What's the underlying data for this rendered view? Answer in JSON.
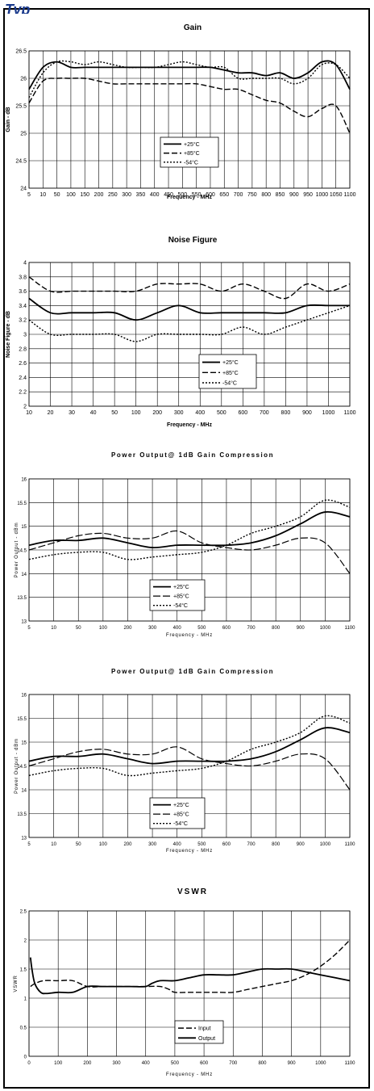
{
  "chart_data": [
    {
      "type": "line",
      "title": "Gain",
      "xlabel": "Frequency - MHz",
      "ylabel": "Gain - dB",
      "ylim": [
        24,
        26.5
      ],
      "y_ticks": [
        "24",
        "24.5",
        "25",
        "25.5",
        "26",
        "26.5"
      ],
      "x_ticks": [
        "5",
        "10",
        "50",
        "100",
        "150",
        "200",
        "250",
        "300",
        "350",
        "400",
        "450",
        "500",
        "550",
        "600",
        "650",
        "700",
        "750",
        "800",
        "850",
        "900",
        "950",
        "1000",
        "1050",
        "1100"
      ],
      "grid": true,
      "legend_position": "center-bottom",
      "series": [
        {
          "name": "+25°C",
          "style": "solid",
          "values": [
            25.8,
            26.2,
            26.3,
            26.2,
            26.2,
            26.2,
            26.2,
            26.2,
            26.2,
            26.2,
            26.2,
            26.2,
            26.2,
            26.2,
            26.15,
            26.1,
            26.1,
            26.05,
            26.1,
            26.0,
            26.1,
            26.3,
            26.25,
            25.8
          ]
        },
        {
          "name": "+85°C",
          "style": "dashed",
          "values": [
            25.55,
            25.95,
            26.0,
            26.0,
            26.0,
            25.95,
            25.9,
            25.9,
            25.9,
            25.9,
            25.9,
            25.9,
            25.9,
            25.85,
            25.8,
            25.8,
            25.7,
            25.6,
            25.55,
            25.4,
            25.3,
            25.45,
            25.5,
            25.0
          ]
        },
        {
          "name": "-54°C",
          "style": "dotted",
          "values": [
            25.65,
            26.1,
            26.3,
            26.3,
            26.25,
            26.3,
            26.25,
            26.2,
            26.2,
            26.2,
            26.25,
            26.3,
            26.25,
            26.2,
            26.2,
            26.0,
            26.0,
            26.0,
            26.0,
            25.9,
            26.0,
            26.25,
            26.25,
            26.0
          ]
        }
      ]
    },
    {
      "type": "line",
      "title": "Noise Figure",
      "xlabel": "Frequency - MHz",
      "ylabel": "Noise Figure - dB",
      "ylim": [
        2,
        4
      ],
      "y_ticks": [
        "2",
        "2.2",
        "2.4",
        "2.6",
        "2.8",
        "3",
        "3.2",
        "3.4",
        "3.6",
        "3.8",
        "4"
      ],
      "x_ticks": [
        "10",
        "20",
        "30",
        "40",
        "50",
        "100",
        "200",
        "300",
        "400",
        "500",
        "600",
        "700",
        "800",
        "900",
        "1000",
        "1100"
      ],
      "grid": true,
      "legend_position": "center-bottom",
      "series": [
        {
          "name": "+25°C",
          "style": "solid",
          "values": [
            3.5,
            3.3,
            3.3,
            3.3,
            3.3,
            3.2,
            3.3,
            3.4,
            3.3,
            3.3,
            3.3,
            3.3,
            3.3,
            3.4,
            3.4,
            3.4
          ]
        },
        {
          "name": "+85°C",
          "style": "dashed",
          "values": [
            3.8,
            3.6,
            3.6,
            3.6,
            3.6,
            3.6,
            3.7,
            3.7,
            3.7,
            3.6,
            3.7,
            3.6,
            3.5,
            3.7,
            3.6,
            3.7
          ]
        },
        {
          "name": "-54°C",
          "style": "dotted",
          "values": [
            3.2,
            3.0,
            3.0,
            3.0,
            3.0,
            2.9,
            3.0,
            3.0,
            3.0,
            3.0,
            3.1,
            3.0,
            3.1,
            3.2,
            3.3,
            3.4
          ]
        }
      ]
    },
    {
      "type": "line",
      "title": "Power Output@ 1dB Gain Compression",
      "xlabel": "Frequency - MHz",
      "ylabel": "Power Output - dBm",
      "ylim": [
        13,
        16
      ],
      "y_ticks": [
        "13",
        "13.5",
        "14",
        "14.5",
        "15",
        "15.5",
        "16"
      ],
      "x_ticks": [
        "5",
        "10",
        "50",
        "100",
        "200",
        "300",
        "400",
        "500",
        "600",
        "700",
        "800",
        "900",
        "1000",
        "1100"
      ],
      "grid": true,
      "legend_position": "center-bottom",
      "series": [
        {
          "name": "+25°C",
          "style": "solid",
          "values": [
            14.6,
            14.7,
            14.7,
            14.75,
            14.65,
            14.55,
            14.6,
            14.6,
            14.6,
            14.65,
            14.8,
            15.05,
            15.3,
            15.2
          ]
        },
        {
          "name": "+85°C",
          "style": "long-dash",
          "values": [
            14.5,
            14.65,
            14.8,
            14.85,
            14.75,
            14.75,
            14.9,
            14.65,
            14.55,
            14.5,
            14.6,
            14.75,
            14.65,
            14.0
          ]
        },
        {
          "name": "-54°C",
          "style": "dotted",
          "values": [
            14.3,
            14.4,
            14.45,
            14.45,
            14.3,
            14.35,
            14.4,
            14.45,
            14.6,
            14.85,
            15.0,
            15.2,
            15.55,
            15.4
          ]
        }
      ]
    },
    {
      "type": "line",
      "title": "Power Output@ 1dB Gain Compression",
      "xlabel": "Frequency - MHz",
      "ylabel": "Power Output - dBm",
      "ylim": [
        13,
        16
      ],
      "y_ticks": [
        "13",
        "13.5",
        "14",
        "14.5",
        "15",
        "15.5",
        "16"
      ],
      "x_ticks": [
        "5",
        "10",
        "50",
        "100",
        "200",
        "300",
        "400",
        "500",
        "600",
        "700",
        "800",
        "900",
        "1000",
        "1100"
      ],
      "grid": true,
      "legend_position": "center-bottom",
      "series": [
        {
          "name": "+25°C",
          "style": "solid",
          "values": [
            14.6,
            14.7,
            14.7,
            14.75,
            14.65,
            14.55,
            14.6,
            14.6,
            14.6,
            14.65,
            14.8,
            15.05,
            15.3,
            15.2
          ]
        },
        {
          "name": "+85°C",
          "style": "long-dash",
          "values": [
            14.5,
            14.65,
            14.8,
            14.85,
            14.75,
            14.75,
            14.9,
            14.65,
            14.55,
            14.5,
            14.6,
            14.75,
            14.65,
            14.0
          ]
        },
        {
          "name": "-54°C",
          "style": "dotted",
          "values": [
            14.3,
            14.4,
            14.45,
            14.45,
            14.3,
            14.35,
            14.4,
            14.45,
            14.6,
            14.85,
            15.0,
            15.2,
            15.55,
            15.4
          ]
        }
      ]
    },
    {
      "type": "line",
      "title": "VSWR",
      "xlabel": "Frequency - MHz",
      "ylabel": "VSWR",
      "ylim": [
        0,
        2.5
      ],
      "xlim": [
        0,
        1100
      ],
      "y_ticks": [
        "0",
        "0.5",
        "1",
        "1.5",
        "2",
        "2.5"
      ],
      "x_ticks": [
        "0",
        "100",
        "200",
        "300",
        "400",
        "500",
        "600",
        "700",
        "800",
        "900",
        "1000",
        "1100"
      ],
      "grid": true,
      "legend_position": "center-bottom",
      "series": [
        {
          "name": "Input",
          "style": "dashed",
          "x": [
            5,
            20,
            50,
            100,
            150,
            200,
            250,
            300,
            350,
            400,
            450,
            480,
            500,
            550,
            600,
            650,
            700,
            750,
            800,
            850,
            900,
            950,
            1000,
            1050,
            1100
          ],
          "values": [
            1.2,
            1.25,
            1.3,
            1.3,
            1.3,
            1.2,
            1.2,
            1.2,
            1.2,
            1.2,
            1.2,
            1.15,
            1.1,
            1.1,
            1.1,
            1.1,
            1.1,
            1.15,
            1.2,
            1.25,
            1.3,
            1.4,
            1.55,
            1.75,
            2.0
          ]
        },
        {
          "name": "Output",
          "style": "solid",
          "x": [
            5,
            10,
            20,
            40,
            60,
            100,
            150,
            200,
            250,
            300,
            350,
            400,
            420,
            450,
            500,
            550,
            600,
            650,
            700,
            750,
            800,
            850,
            900,
            950,
            1000,
            1050,
            1100
          ],
          "values": [
            1.7,
            1.5,
            1.25,
            1.1,
            1.08,
            1.1,
            1.1,
            1.2,
            1.2,
            1.2,
            1.2,
            1.2,
            1.25,
            1.3,
            1.3,
            1.35,
            1.4,
            1.4,
            1.4,
            1.45,
            1.5,
            1.5,
            1.5,
            1.45,
            1.4,
            1.35,
            1.3
          ]
        }
      ]
    }
  ]
}
